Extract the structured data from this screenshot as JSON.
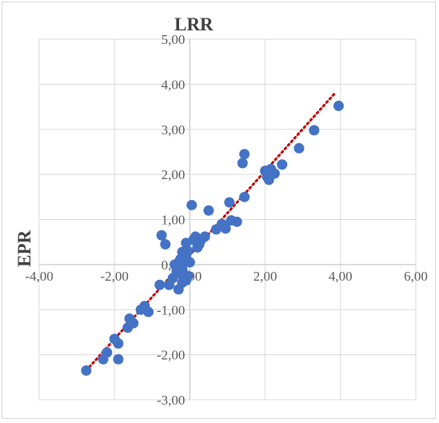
{
  "chart_data": {
    "type": "scatter",
    "title": "",
    "xlabel": "LRR",
    "ylabel": "EPR",
    "xlim": [
      -4,
      6
    ],
    "ylim": [
      -3,
      5
    ],
    "x_ticks": [
      "-4,00",
      "-2,00",
      "0,00",
      "2,00",
      "4,00",
      "6,00"
    ],
    "y_ticks": [
      "5,00",
      "4,00",
      "3,00",
      "2,00",
      "1,00",
      "0,00",
      "-1,00",
      "-2,00",
      "-3,00"
    ],
    "grid": true,
    "colors": {
      "points": "#4472c4",
      "trendline": "#c00000",
      "grid": "#d9d9d9",
      "axis": "#bfbfbf"
    },
    "series": [
      {
        "points": [
          [
            3.95,
            3.52
          ],
          [
            3.3,
            2.98
          ],
          [
            2.9,
            2.58
          ],
          [
            2.45,
            2.22
          ],
          [
            2.25,
            2.02
          ],
          [
            2.15,
            2.12
          ],
          [
            2.05,
            1.95
          ],
          [
            2.1,
            1.88
          ],
          [
            2.0,
            2.08
          ],
          [
            1.45,
            2.45
          ],
          [
            1.4,
            2.25
          ],
          [
            1.45,
            1.5
          ],
          [
            1.25,
            0.95
          ],
          [
            1.1,
            0.98
          ],
          [
            1.05,
            1.38
          ],
          [
            0.95,
            0.8
          ],
          [
            0.85,
            0.9
          ],
          [
            0.7,
            0.78
          ],
          [
            0.5,
            1.2
          ],
          [
            0.4,
            0.62
          ],
          [
            0.3,
            0.55
          ],
          [
            0.25,
            0.45
          ],
          [
            0.2,
            0.38
          ],
          [
            0.15,
            0.62
          ],
          [
            0.1,
            0.55
          ],
          [
            0.05,
            1.32
          ],
          [
            0.0,
            0.05
          ],
          [
            -0.05,
            0.3
          ],
          [
            -0.1,
            0.2
          ],
          [
            -0.15,
            0.1
          ],
          [
            -0.2,
            0.28
          ],
          [
            -0.25,
            0.12
          ],
          [
            -0.3,
            0.05
          ],
          [
            -0.4,
            0.0
          ],
          [
            -0.1,
            0.48
          ],
          [
            -0.2,
            -0.1
          ],
          [
            -0.25,
            -0.2
          ],
          [
            -0.35,
            -0.15
          ],
          [
            -0.45,
            -0.3
          ],
          [
            -0.55,
            -0.45
          ],
          [
            -0.65,
            0.45
          ],
          [
            -0.75,
            0.65
          ],
          [
            -0.05,
            -0.25
          ],
          [
            -0.1,
            -0.35
          ],
          [
            -0.2,
            -0.4
          ],
          [
            -0.3,
            -0.55
          ],
          [
            -0.8,
            -0.45
          ],
          [
            -1.1,
            -1.05
          ],
          [
            -1.2,
            -0.92
          ],
          [
            -1.3,
            -1.0
          ],
          [
            -1.5,
            -1.3
          ],
          [
            -1.6,
            -1.2
          ],
          [
            -1.65,
            -1.4
          ],
          [
            -1.9,
            -1.75
          ],
          [
            -2.0,
            -1.65
          ],
          [
            -2.2,
            -1.95
          ],
          [
            -2.3,
            -2.1
          ],
          [
            -1.9,
            -2.1
          ],
          [
            -2.75,
            -2.35
          ]
        ]
      }
    ],
    "trendline": {
      "style": "dotted",
      "from": [
        -2.75,
        -2.35
      ],
      "to": [
        3.85,
        3.8
      ]
    }
  }
}
